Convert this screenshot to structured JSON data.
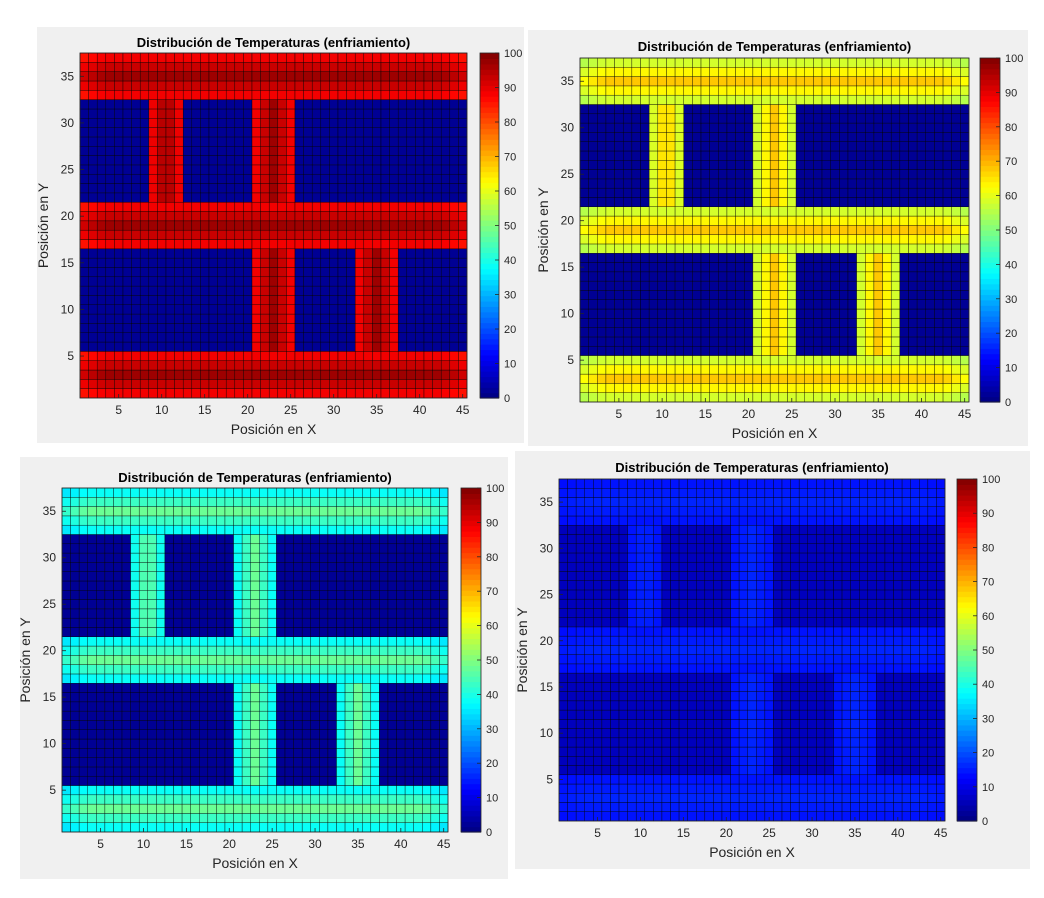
{
  "chart_data": [
    {
      "type": "heatmap",
      "title": "Distribución de Temperaturas (enfriamiento)",
      "xlabel": "Posición en X",
      "ylabel": "Posición en Y",
      "xlim": [
        1,
        46
      ],
      "ylim": [
        1,
        38
      ],
      "x_ticks": [
        5,
        10,
        15,
        20,
        25,
        30,
        35,
        40,
        45
      ],
      "y_ticks": [
        5,
        10,
        15,
        20,
        25,
        30,
        35
      ],
      "colormap": "jet",
      "clim": [
        0,
        100
      ],
      "colorbar_ticks": [
        0,
        10,
        20,
        30,
        40,
        50,
        60,
        70,
        80,
        90,
        100
      ],
      "grid": "cell edges",
      "background_temp": 2,
      "band_peak_temp": 97,
      "band_edge_temp": 78,
      "bands": {
        "horizontal_y": [
          [
            1,
            6
          ],
          [
            17,
            22
          ],
          [
            33,
            38
          ]
        ],
        "vertical_top_x": [
          [
            9,
            13
          ],
          [
            21,
            26
          ]
        ],
        "vertical_bottom_x": [
          [
            21,
            26
          ],
          [
            33,
            38
          ]
        ]
      }
    },
    {
      "type": "heatmap",
      "title": "Distribución de Temperaturas (enfriamiento)",
      "xlabel": "Posición en X",
      "ylabel": "Posición en Y",
      "xlim": [
        1,
        46
      ],
      "ylim": [
        1,
        38
      ],
      "x_ticks": [
        5,
        10,
        15,
        20,
        25,
        30,
        35,
        40,
        45
      ],
      "y_ticks": [
        5,
        10,
        15,
        20,
        25,
        30,
        35
      ],
      "colormap": "jet",
      "clim": [
        0,
        100
      ],
      "colorbar_ticks": [
        0,
        10,
        20,
        30,
        40,
        50,
        60,
        70,
        80,
        90,
        100
      ],
      "grid": "cell edges",
      "background_temp": 2,
      "band_peak_temp": 68,
      "band_edge_temp": 46,
      "bands": {
        "horizontal_y": [
          [
            1,
            6
          ],
          [
            17,
            22
          ],
          [
            33,
            38
          ]
        ],
        "vertical_top_x": [
          [
            9,
            13
          ],
          [
            21,
            26
          ]
        ],
        "vertical_bottom_x": [
          [
            21,
            26
          ],
          [
            33,
            38
          ]
        ]
      }
    },
    {
      "type": "heatmap",
      "title": "Distribución de Temperaturas (enfriamiento)",
      "xlabel": "Posición en X",
      "ylabel": "Posición en Y",
      "xlim": [
        1,
        46
      ],
      "ylim": [
        1,
        38
      ],
      "x_ticks": [
        5,
        10,
        15,
        20,
        25,
        30,
        35,
        40,
        45
      ],
      "y_ticks": [
        5,
        10,
        15,
        20,
        25,
        30,
        35
      ],
      "colormap": "jet",
      "clim": [
        0,
        100
      ],
      "colorbar_ticks": [
        0,
        10,
        20,
        30,
        40,
        50,
        60,
        70,
        80,
        90,
        100
      ],
      "grid": "cell edges",
      "background_temp": 2,
      "band_peak_temp": 48,
      "band_edge_temp": 26,
      "bands": {
        "horizontal_y": [
          [
            1,
            6
          ],
          [
            17,
            22
          ],
          [
            33,
            38
          ]
        ],
        "vertical_top_x": [
          [
            9,
            13
          ],
          [
            21,
            26
          ]
        ],
        "vertical_bottom_x": [
          [
            21,
            26
          ],
          [
            33,
            38
          ]
        ]
      }
    },
    {
      "type": "heatmap",
      "title": "Distribución de Temperaturas (enfriamiento)",
      "xlabel": "Posición en X",
      "ylabel": "Posición en Y",
      "xlim": [
        1,
        46
      ],
      "ylim": [
        1,
        38
      ],
      "x_ticks": [
        5,
        10,
        15,
        20,
        25,
        30,
        35,
        40,
        45
      ],
      "y_ticks": [
        5,
        10,
        15,
        20,
        25,
        30,
        35
      ],
      "colormap": "jet",
      "clim": [
        0,
        100
      ],
      "colorbar_ticks": [
        0,
        10,
        20,
        30,
        40,
        50,
        60,
        70,
        80,
        90,
        100
      ],
      "grid": "cell edges",
      "background_temp": 6,
      "band_peak_temp": 16,
      "band_edge_temp": 12,
      "bands": {
        "horizontal_y": [
          [
            1,
            6
          ],
          [
            17,
            22
          ],
          [
            33,
            38
          ]
        ],
        "vertical_top_x": [
          [
            9,
            13
          ],
          [
            21,
            26
          ]
        ],
        "vertical_bottom_x": [
          [
            21,
            26
          ],
          [
            33,
            38
          ]
        ]
      }
    }
  ]
}
